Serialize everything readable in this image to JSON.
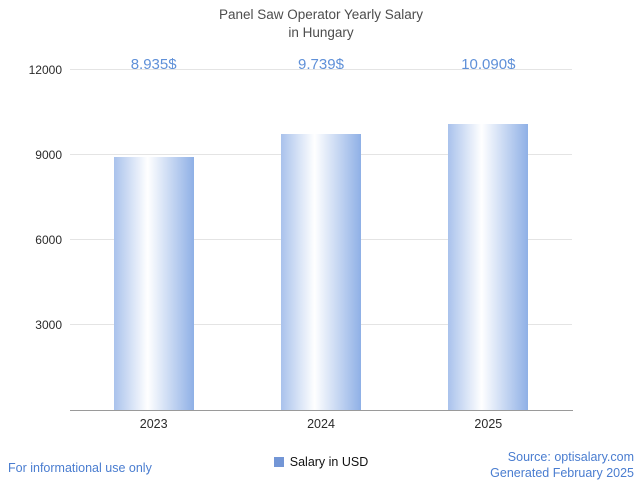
{
  "header": {
    "title_line1": "Panel Saw Operator Yearly Salary",
    "title_line2": "in Hungary"
  },
  "chart_data": {
    "type": "bar",
    "title": "Panel Saw Operator Yearly Salary in Hungary",
    "categories": [
      "2023",
      "2024",
      "2025"
    ],
    "values": [
      8935,
      9739,
      10090
    ],
    "value_labels": [
      "8,935$",
      "9,739$",
      "10,090$"
    ],
    "ylim": [
      0,
      12000
    ],
    "yticks": [
      3000,
      6000,
      9000,
      12000
    ],
    "ytick_labels": [
      "3000",
      "6000",
      "9000",
      "12000"
    ],
    "grid": true,
    "legend": {
      "label": "Salary in USD",
      "position": "bottom"
    },
    "colors": {
      "bar_gradient_left": "#a9c2ec",
      "bar_gradient_mid": "#ffffff",
      "bar_gradient_right": "#8fb0e6",
      "value_label": "#5f90d8",
      "legend_swatch": "#7396d6",
      "link_blue": "#4a7dd0"
    }
  },
  "footer": {
    "disclaimer": "For informational use only",
    "source_line1": "Source: optisalary.com",
    "source_line2": "Generated February 2025"
  }
}
